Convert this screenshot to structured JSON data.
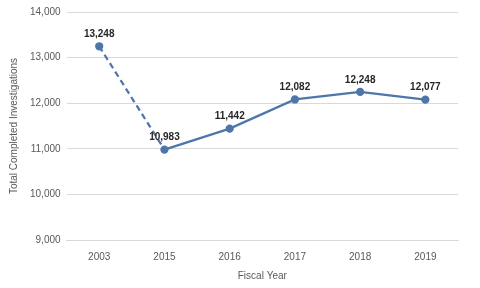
{
  "chart_data": {
    "type": "line",
    "x_label": "Fiscal Year",
    "y_label": "Total Completed Investigations",
    "categories": [
      "2003",
      "2015",
      "2016",
      "2017",
      "2018",
      "2019"
    ],
    "values": [
      13248,
      10983,
      11442,
      12082,
      12248,
      12077
    ],
    "value_labels": [
      "13,248",
      "10,983",
      "11,442",
      "12,082",
      "12,248",
      "12,077"
    ],
    "color": "#4f76a8",
    "marker": "circle",
    "ylim": [
      9000,
      14000
    ],
    "yticks": [
      {
        "value": 9000,
        "label": "9,000"
      },
      {
        "value": 10000,
        "label": "10,000"
      },
      {
        "value": 11000,
        "label": "11,000"
      },
      {
        "value": 12000,
        "label": "12,000"
      },
      {
        "value": 13000,
        "label": "13,000"
      },
      {
        "value": 14000,
        "label": "14,000"
      }
    ],
    "grid": true,
    "data_labels": true
  }
}
